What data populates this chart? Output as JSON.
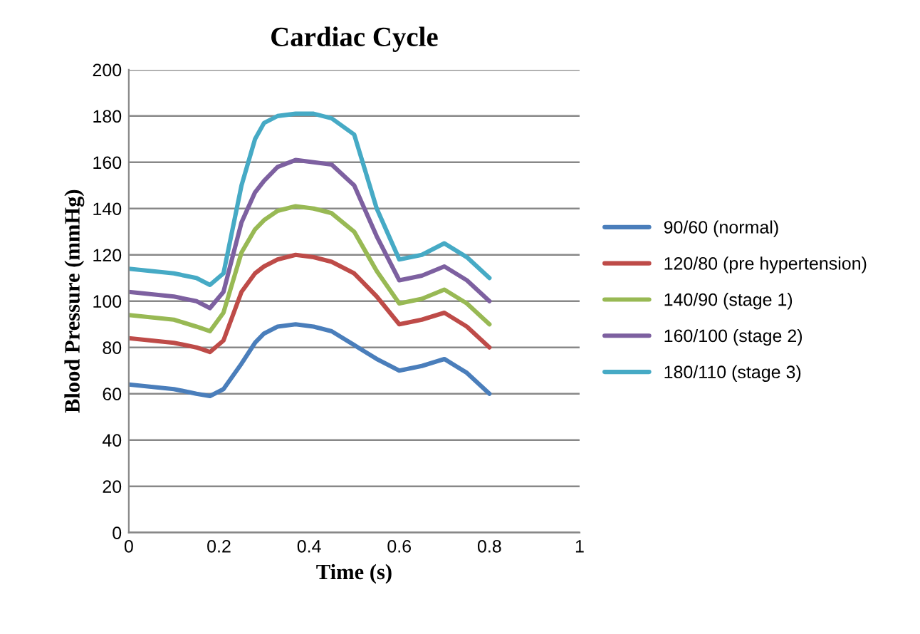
{
  "chart_data": {
    "type": "line",
    "title": "Cardiac Cycle",
    "xlabel": "Time (s)",
    "ylabel": "Blood Pressure (mmHg)",
    "x": [
      0,
      0.05,
      0.1,
      0.15,
      0.18,
      0.21,
      0.25,
      0.28,
      0.3,
      0.33,
      0.37,
      0.41,
      0.45,
      0.5,
      0.55,
      0.6,
      0.65,
      0.7,
      0.75,
      0.8
    ],
    "series": [
      {
        "name": "90/60 (normal)",
        "color": "#4a7ebb",
        "values": [
          64,
          63,
          62,
          60,
          59,
          62,
          73,
          82,
          86,
          89,
          90,
          89,
          87,
          81,
          75,
          70,
          72,
          75,
          69,
          60
        ]
      },
      {
        "name": "120/80 (pre hypertension)",
        "color": "#be4b48",
        "values": [
          84,
          83,
          82,
          80,
          78,
          83,
          104,
          112,
          115,
          118,
          120,
          119,
          117,
          112,
          102,
          90,
          92,
          95,
          89,
          80
        ]
      },
      {
        "name": "140/90 (stage 1)",
        "color": "#98b954",
        "values": [
          94,
          93,
          92,
          89,
          87,
          95,
          121,
          131,
          135,
          139,
          141,
          140,
          138,
          130,
          113,
          99,
          101,
          105,
          99,
          90
        ]
      },
      {
        "name": "160/100 (stage 2)",
        "color": "#7d60a0",
        "values": [
          104,
          103,
          102,
          100,
          97,
          104,
          134,
          147,
          152,
          158,
          161,
          160,
          159,
          150,
          128,
          109,
          111,
          115,
          109,
          100
        ]
      },
      {
        "name": "180/110 (stage 3)",
        "color": "#46aac5",
        "values": [
          114,
          113,
          112,
          110,
          107,
          112,
          150,
          170,
          177,
          180,
          181,
          181,
          179,
          172,
          140,
          118,
          120,
          125,
          119,
          110
        ]
      }
    ],
    "xlim": [
      0,
      1
    ],
    "xticks": [
      0,
      0.2,
      0.4,
      0.6,
      0.8,
      1
    ],
    "ylim": [
      0,
      200
    ],
    "yticks": [
      0,
      20,
      40,
      60,
      80,
      100,
      120,
      140,
      160,
      180,
      200
    ],
    "grid": "y",
    "legend": "right",
    "marker": "none",
    "line_style": "solid"
  }
}
